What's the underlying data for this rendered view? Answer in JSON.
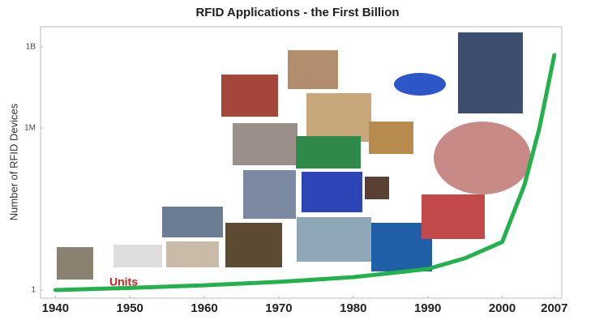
{
  "chart_data": {
    "type": "line",
    "title": "RFID Applications - the First Billion",
    "y_label": "Number of RFID Devices",
    "annotation": "Units",
    "x": [
      1940,
      1950,
      1960,
      1970,
      1980,
      1990,
      1995,
      2000,
      2003,
      2005,
      2007
    ],
    "series": [
      {
        "name": "Units",
        "color": "#22b14c",
        "values": [
          1,
          1.2,
          1.5,
          2,
          3,
          6,
          15,
          60,
          8000,
          1000000,
          500000000
        ]
      }
    ],
    "xlim": [
      1938,
      2008
    ],
    "xticks": [
      1940,
      1950,
      1960,
      1970,
      1980,
      1990,
      2000,
      2007
    ],
    "ylim": [
      0.5,
      5600000000
    ],
    "yticks": [
      1,
      {
        "value": 1000000,
        "label": "1M"
      },
      {
        "value": 1000000000,
        "label": "1B"
      }
    ],
    "log_y": true
  }
}
